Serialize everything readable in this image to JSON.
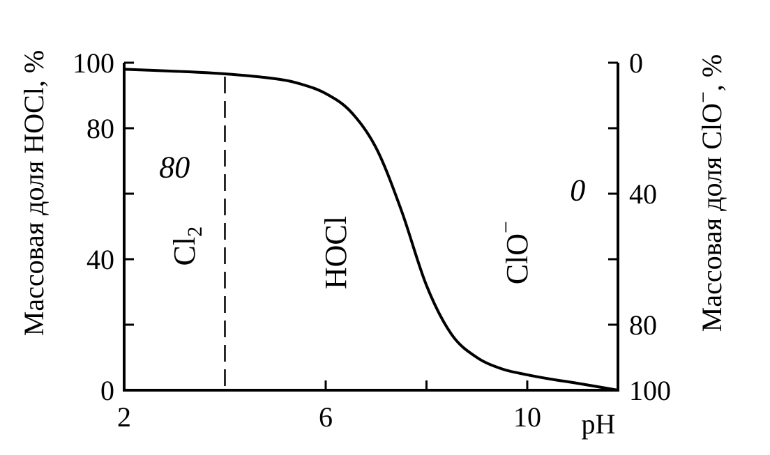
{
  "chart_data": {
    "type": "line",
    "title": "",
    "xlabel": "pH",
    "ylabel": "Массовая доля HOCl, %",
    "ylabel_right": "Массовая доля ClO⁻, %",
    "xlim": [
      2,
      11.8
    ],
    "ylim": [
      0,
      100
    ],
    "ylim_right": [
      100,
      0
    ],
    "grid": false,
    "x_ticks_major": [
      2,
      6,
      10
    ],
    "x_ticks_minor": [
      8
    ],
    "y_ticks_left_major": [
      0,
      40,
      80,
      100
    ],
    "y_ticks_left_minor": [
      20,
      60
    ],
    "y_ticks_right_major": [
      0,
      40,
      80,
      100
    ],
    "y_ticks_right_minor": [
      20,
      60
    ],
    "series": [
      {
        "name": "",
        "x": [
          2.0,
          3.0,
          4.0,
          5.0,
          5.5,
          6.0,
          6.5,
          7.0,
          7.5,
          8.0,
          8.5,
          9.0,
          9.5,
          10.0,
          10.5,
          11.0,
          11.8
        ],
        "y": [
          98.0,
          97.4,
          96.6,
          95.1,
          93.5,
          90.6,
          85.0,
          74.0,
          55.0,
          32.0,
          17.0,
          10.0,
          6.5,
          4.7,
          3.3,
          2.1,
          0.0
        ]
      }
    ],
    "reference_lines": [
      {
        "axis": "x",
        "value": 4.0,
        "style": "dashed"
      }
    ],
    "annotations": [
      {
        "text": "Cl",
        "sub": "2",
        "x": 3.4,
        "y": 44,
        "rotation": -90
      },
      {
        "text": "HOCl",
        "x": 6.4,
        "y": 42,
        "rotation": -90
      },
      {
        "text": "ClO",
        "sup": "−",
        "x": 10.0,
        "y": 42,
        "rotation": -90
      },
      {
        "text": "80",
        "x": 3.0,
        "y": 65,
        "style": "italic"
      },
      {
        "text": "0",
        "x": 11.0,
        "y": 58,
        "style": "italic"
      }
    ]
  }
}
